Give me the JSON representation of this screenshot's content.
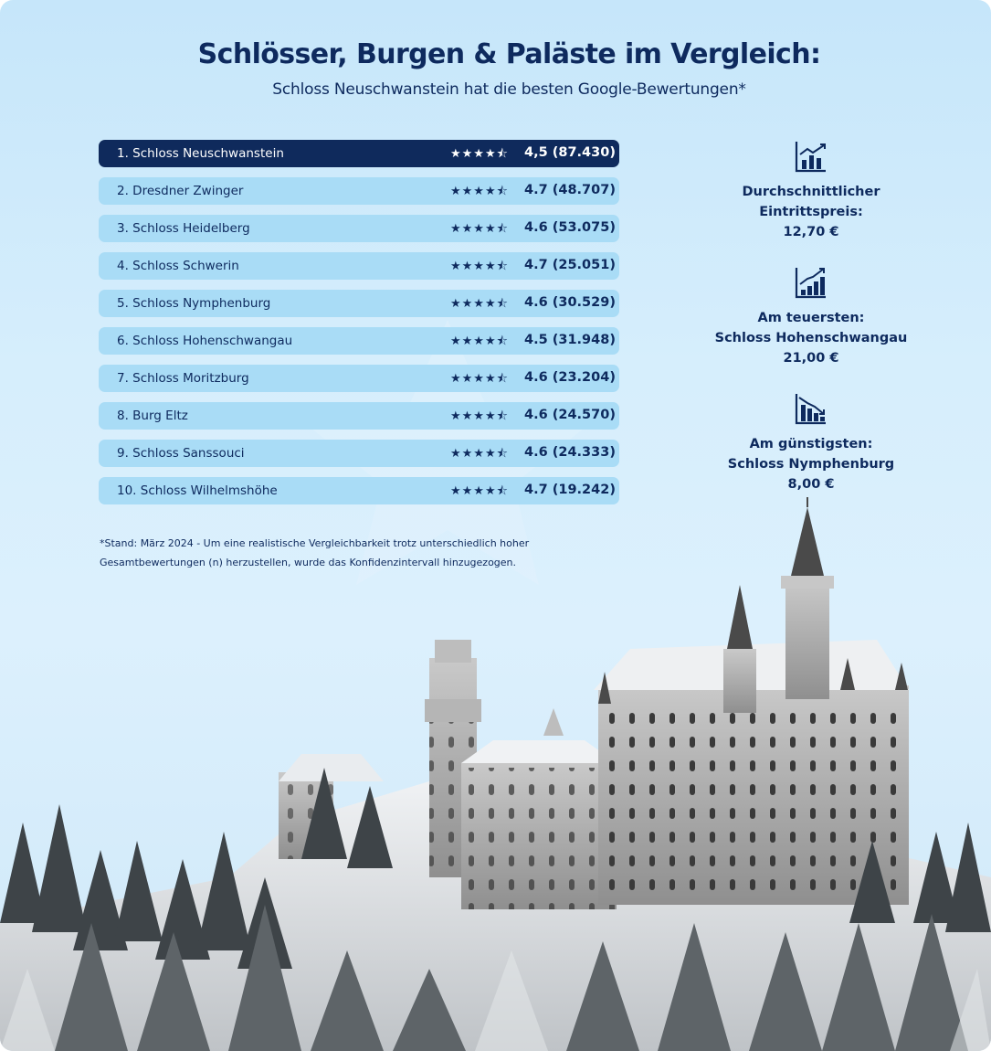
{
  "header": {
    "title": "Schlösser, Burgen & Paläste im Vergleich:",
    "subtitle": "Schloss Neuschwanstein hat die besten Google-Bewertungen*"
  },
  "ranking": [
    {
      "name": "1. Schloss Neuschwanstein",
      "stars": "★★★★⯪",
      "score": "4,5 (87.430)"
    },
    {
      "name": "2. Dresdner Zwinger",
      "stars": "★★★★⯪",
      "score": "4.7 (48.707)"
    },
    {
      "name": "3. Schloss Heidelberg",
      "stars": "★★★★⯪",
      "score": "4.6 (53.075)"
    },
    {
      "name": "4. Schloss Schwerin",
      "stars": "★★★★⯪",
      "score": "4.7 (25.051)"
    },
    {
      "name": "5. Schloss Nymphenburg",
      "stars": "★★★★⯪",
      "score": "4.6 (30.529)"
    },
    {
      "name": "6. Schloss Hohenschwangau",
      "stars": "★★★★⯪",
      "score": "4.5 (31.948)"
    },
    {
      "name": "7. Schloss Moritzburg",
      "stars": "★★★★⯪",
      "score": "4.6 (23.204)"
    },
    {
      "name": "8. Burg Eltz",
      "stars": "★★★★⯪",
      "score": "4.6 (24.570)"
    },
    {
      "name": "9. Schloss Sanssouci",
      "stars": "★★★★⯪",
      "score": "4.6 (24.333)"
    },
    {
      "name": "10. Schloss Wilhelmshöhe",
      "stars": "★★★★⯪",
      "score": "4.7 (19.242)"
    }
  ],
  "footnote": {
    "line1": "*Stand: März 2024 - Um eine realistische Vergleichbarkeit trotz unterschiedlich hoher",
    "line2": "Gesamtbewertungen (n) herzustellen, wurde das Konfidenzintervall hinzugezogen."
  },
  "stats": [
    {
      "icon": "bar-chart-up-icon",
      "line1": "Durchschnittlicher",
      "line2": "Eintrittspreis:",
      "line3": "12,70 €"
    },
    {
      "icon": "bar-chart-rising-icon",
      "line1": "Am teuersten:",
      "line2": "Schloss Hohenschwangau",
      "line3": "21,00 €"
    },
    {
      "icon": "bar-chart-down-icon",
      "line1": "Am günstigsten:",
      "line2": "Schloss Nymphenburg",
      "line3": "8,00 €"
    }
  ],
  "colors": {
    "navy": "#0e2a5e",
    "row": "#a9dcf6",
    "background": "#d6eefc"
  }
}
